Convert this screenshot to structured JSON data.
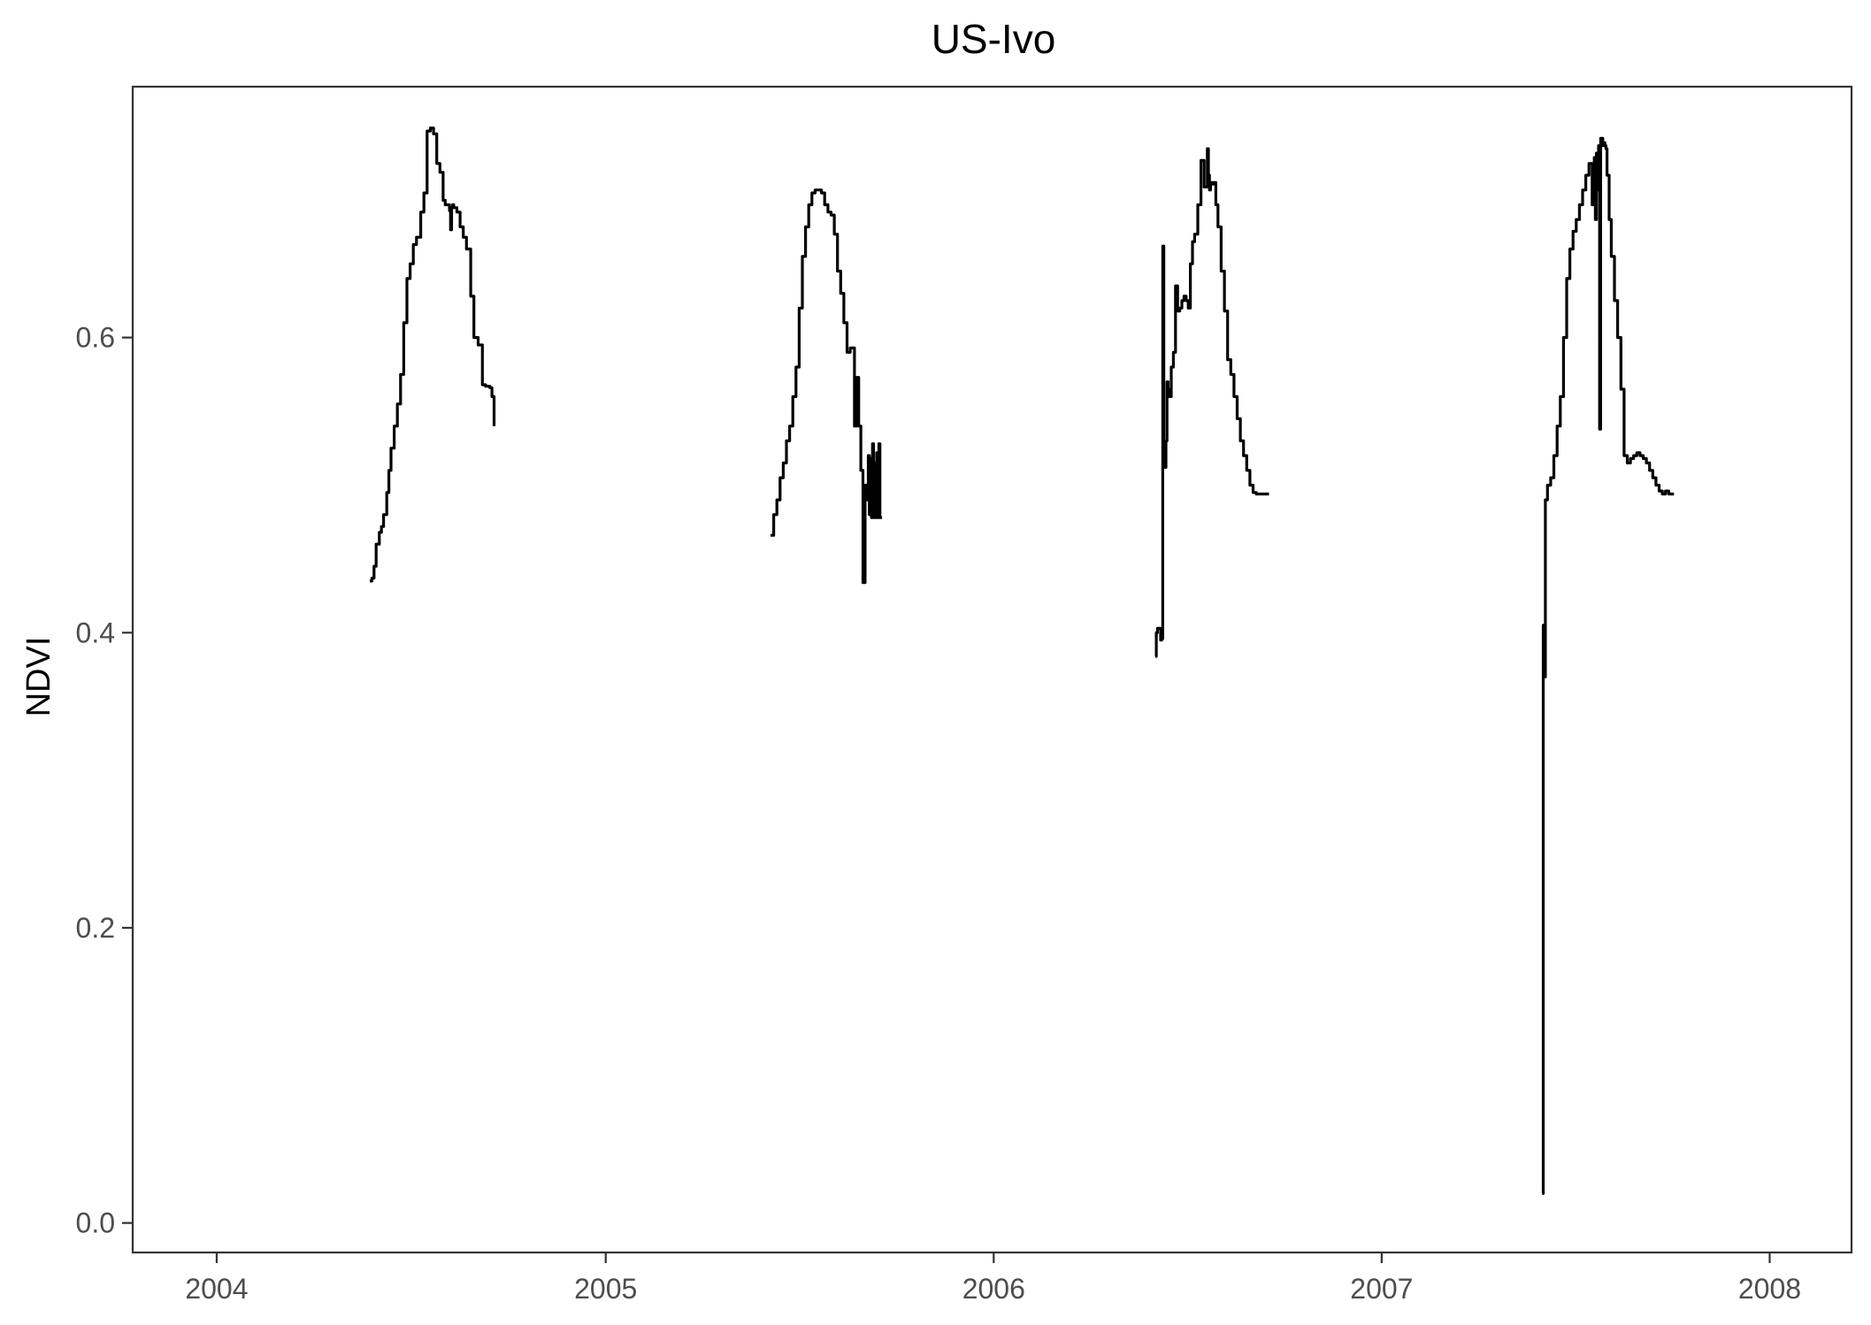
{
  "chart_data": {
    "type": "line",
    "title": "US-Ivo",
    "xlabel": "",
    "ylabel": "NDVI",
    "xlim": [
      "2003-10-14",
      "2008-03-18"
    ],
    "ylim": [
      -0.02,
      0.77
    ],
    "x_ticks": [
      "2004-01-01",
      "2005-01-01",
      "2006-01-01",
      "2007-01-01",
      "2008-01-01"
    ],
    "x_tick_labels": [
      "2004",
      "2005",
      "2006",
      "2007",
      "2008"
    ],
    "y_ticks": [
      0.0,
      0.2,
      0.4,
      0.6
    ],
    "y_tick_labels": [
      "0.0",
      "0.2",
      "0.4",
      "0.6"
    ],
    "grid": false,
    "legend": "none",
    "line_color": "#000000",
    "segments": [
      {
        "x": [
          "2004-05-24",
          "2004-05-26",
          "2004-05-28",
          "2004-05-30",
          "2004-06-02",
          "2004-06-04",
          "2004-06-06",
          "2004-06-09",
          "2004-06-11",
          "2004-06-13",
          "2004-06-16",
          "2004-06-19",
          "2004-06-22",
          "2004-06-25",
          "2004-06-28",
          "2004-07-01",
          "2004-07-04",
          "2004-07-07",
          "2004-07-11",
          "2004-07-14",
          "2004-07-17",
          "2004-07-20",
          "2004-07-23",
          "2004-07-26",
          "2004-07-29",
          "2004-08-01",
          "2004-08-03",
          "2004-08-05",
          "2004-08-07",
          "2004-08-08",
          "2004-08-09",
          "2004-08-10",
          "2004-08-11",
          "2004-08-14",
          "2004-08-17",
          "2004-08-20",
          "2004-08-23",
          "2004-08-27",
          "2004-08-30",
          "2004-09-03",
          "2004-09-07",
          "2004-09-10",
          "2004-09-14",
          "2004-09-16",
          "2004-09-18"
        ],
        "y": [
          0.435,
          0.437,
          0.445,
          0.46,
          0.468,
          0.472,
          0.48,
          0.495,
          0.51,
          0.525,
          0.54,
          0.555,
          0.575,
          0.61,
          0.64,
          0.65,
          0.663,
          0.668,
          0.685,
          0.698,
          0.74,
          0.742,
          0.738,
          0.718,
          0.712,
          0.693,
          0.69,
          0.69,
          0.686,
          0.673,
          0.688,
          0.69,
          0.688,
          0.685,
          0.675,
          0.668,
          0.66,
          0.628,
          0.6,
          0.595,
          0.568,
          0.567,
          0.566,
          0.56,
          0.54
        ]
      },
      {
        "x": [
          "2005-06-05",
          "2005-06-08",
          "2005-06-11",
          "2005-06-14",
          "2005-06-17",
          "2005-06-20",
          "2005-06-23",
          "2005-06-26",
          "2005-06-29",
          "2005-07-02",
          "2005-07-05",
          "2005-07-08",
          "2005-07-11",
          "2005-07-14",
          "2005-07-17",
          "2005-07-20",
          "2005-07-23",
          "2005-07-26",
          "2005-07-29",
          "2005-08-01",
          "2005-08-04",
          "2005-08-07",
          "2005-08-10",
          "2005-08-13",
          "2005-08-16",
          "2005-08-19",
          "2005-08-21",
          "2005-08-23",
          "2005-08-25",
          "2005-08-27",
          "2005-08-29",
          "2005-08-31",
          "2005-09-02",
          "2005-09-04",
          "2005-09-05",
          "2005-09-06",
          "2005-09-07",
          "2005-09-08",
          "2005-09-09",
          "2005-09-10",
          "2005-09-11",
          "2005-09-12",
          "2005-09-13",
          "2005-09-14",
          "2005-09-15",
          "2005-09-16",
          "2005-09-18"
        ],
        "y": [
          0.466,
          0.48,
          0.49,
          0.505,
          0.515,
          0.53,
          0.54,
          0.56,
          0.58,
          0.62,
          0.655,
          0.675,
          0.69,
          0.698,
          0.7,
          0.7,
          0.698,
          0.69,
          0.685,
          0.683,
          0.67,
          0.645,
          0.63,
          0.61,
          0.59,
          0.593,
          0.593,
          0.54,
          0.573,
          0.54,
          0.51,
          0.434,
          0.5,
          0.49,
          0.52,
          0.48,
          0.518,
          0.478,
          0.528,
          0.478,
          0.515,
          0.478,
          0.522,
          0.478,
          0.528,
          0.478,
          0.478
        ]
      },
      {
        "x": [
          "2006-06-02",
          "2006-06-03",
          "2006-06-04",
          "2006-06-06",
          "2006-06-07",
          "2006-06-08",
          "2006-06-09",
          "2006-06-10",
          "2006-06-11",
          "2006-06-12",
          "2006-06-13",
          "2006-06-14",
          "2006-06-15",
          "2006-06-17",
          "2006-06-19",
          "2006-06-21",
          "2006-06-23",
          "2006-06-25",
          "2006-06-27",
          "2006-06-29",
          "2006-07-01",
          "2006-07-03",
          "2006-07-05",
          "2006-07-07",
          "2006-07-09",
          "2006-07-12",
          "2006-07-15",
          "2006-07-18",
          "2006-07-21",
          "2006-07-22",
          "2006-07-23",
          "2006-07-24",
          "2006-07-25",
          "2006-07-26",
          "2006-07-27",
          "2006-07-29",
          "2006-07-31",
          "2006-08-03",
          "2006-08-06",
          "2006-08-09",
          "2006-08-12",
          "2006-08-15",
          "2006-08-18",
          "2006-08-21",
          "2006-08-24",
          "2006-08-27",
          "2006-08-30",
          "2006-09-02",
          "2006-09-05",
          "2006-09-08",
          "2006-09-11",
          "2006-09-14",
          "2006-09-17"
        ],
        "y": [
          0.384,
          0.4,
          0.403,
          0.403,
          0.395,
          0.396,
          0.662,
          0.52,
          0.512,
          0.53,
          0.57,
          0.565,
          0.56,
          0.58,
          0.59,
          0.635,
          0.618,
          0.62,
          0.625,
          0.628,
          0.625,
          0.62,
          0.65,
          0.665,
          0.67,
          0.69,
          0.72,
          0.702,
          0.728,
          0.71,
          0.7,
          0.705,
          0.705,
          0.704,
          0.705,
          0.69,
          0.675,
          0.645,
          0.618,
          0.585,
          0.575,
          0.56,
          0.545,
          0.53,
          0.52,
          0.51,
          0.5,
          0.495,
          0.494,
          0.494,
          0.494,
          0.494,
          0.494
        ]
      },
      {
        "x": [
          "2007-06-01",
          "2007-06-02",
          "2007-06-03",
          "2007-06-04",
          "2007-06-06",
          "2007-06-09",
          "2007-06-12",
          "2007-06-15",
          "2007-06-18",
          "2007-06-21",
          "2007-06-24",
          "2007-06-27",
          "2007-06-30",
          "2007-07-03",
          "2007-07-06",
          "2007-07-09",
          "2007-07-12",
          "2007-07-15",
          "2007-07-18",
          "2007-07-20",
          "2007-07-21",
          "2007-07-22",
          "2007-07-23",
          "2007-07-24",
          "2007-07-25",
          "2007-07-26",
          "2007-07-27",
          "2007-07-28",
          "2007-07-29",
          "2007-07-30",
          "2007-07-31",
          "2007-08-01",
          "2007-08-03",
          "2007-08-05",
          "2007-08-08",
          "2007-08-11",
          "2007-08-14",
          "2007-08-17",
          "2007-08-20",
          "2007-08-23",
          "2007-08-26",
          "2007-08-29",
          "2007-09-01",
          "2007-09-04",
          "2007-09-07",
          "2007-09-10",
          "2007-09-13",
          "2007-09-16",
          "2007-09-19",
          "2007-09-22",
          "2007-09-25",
          "2007-09-28",
          "2007-10-01",
          "2007-10-03"
        ],
        "y": [
          0.02,
          0.405,
          0.37,
          0.49,
          0.5,
          0.505,
          0.52,
          0.54,
          0.56,
          0.6,
          0.64,
          0.66,
          0.672,
          0.68,
          0.69,
          0.7,
          0.71,
          0.718,
          0.69,
          0.722,
          0.68,
          0.725,
          0.7,
          0.73,
          0.538,
          0.735,
          0.735,
          0.73,
          0.732,
          0.73,
          0.728,
          0.71,
          0.68,
          0.655,
          0.625,
          0.6,
          0.565,
          0.52,
          0.515,
          0.518,
          0.52,
          0.522,
          0.52,
          0.518,
          0.515,
          0.51,
          0.505,
          0.5,
          0.496,
          0.494,
          0.496,
          0.494,
          0.494,
          0.494
        ]
      }
    ]
  }
}
